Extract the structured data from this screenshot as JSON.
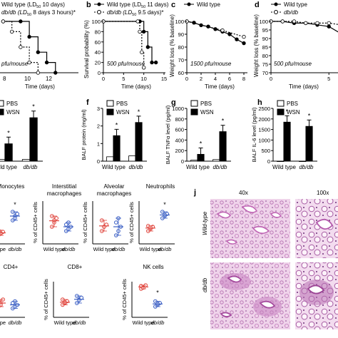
{
  "panels": {
    "a": {
      "letter": "",
      "legend": [
        "Wild type (LD",
        "50",
        " 10 days)",
        "db/db (LD",
        "50",
        " 8 days 3 hours)*"
      ],
      "note": "pfu/mouse",
      "xlabel": "Time (days)",
      "xticks": [
        "8",
        "10",
        "12"
      ]
    },
    "b": {
      "letter": "b",
      "legend": [
        "Wild type (LD",
        "50",
        " 11 days)",
        "db/db (LD",
        "50",
        " 9.5 days)*"
      ],
      "note": "500 pfu/mouse",
      "xlabel": "Time (days)",
      "ylabel": "Survival probability (%)",
      "xticks": [
        "0",
        "5",
        "10",
        "15"
      ],
      "yticks": [
        "100",
        "80",
        "60",
        "40",
        "20",
        "0"
      ]
    },
    "c": {
      "letter": "c",
      "legend": [
        "Wild type"
      ],
      "note": "1500 pfu/mouse",
      "xlabel": "Time (days)",
      "ylabel": "Weight loss (% baseline)",
      "xticks": [
        "0",
        "2",
        "4",
        "6",
        "8"
      ],
      "yticks": [
        "100",
        "90",
        "80",
        "70",
        "60"
      ]
    },
    "d": {
      "letter": "d",
      "legend": [
        "Wild type",
        "db/db"
      ],
      "note": "500 pfu/mouse",
      "xlabel": "Time (days)",
      "ylabel": "Weight loss (% baseline)",
      "xticks": [
        "0",
        "5"
      ],
      "yticks": [
        "100",
        "95",
        "90",
        "85",
        "80",
        "75",
        "70"
      ]
    },
    "e": {
      "letter": "",
      "legend": [
        "PBS",
        "WSN"
      ],
      "xcats": [
        "Wild type",
        "db/db"
      ]
    },
    "f": {
      "letter": "f",
      "legend": [
        "PBS",
        "WSN"
      ],
      "ylabel": "BALF protein (mg/ml)",
      "yticks": [
        "3",
        "2",
        "1",
        "0"
      ],
      "xcats": [
        "Wild type",
        "db/db"
      ]
    },
    "g": {
      "letter": "g",
      "legend": [
        "PBS",
        "WSN"
      ],
      "ylabel": "BALF TNFα level (pg/ml)",
      "yticks": [
        "1000",
        "800",
        "600",
        "400",
        "200",
        "0"
      ],
      "xcats": [
        "Wild type",
        "db/db"
      ]
    },
    "h": {
      "letter": "h",
      "legend": [
        "PBS",
        "WSN"
      ],
      "ylabel": "BALF IL-6 level (pg/ml)",
      "yticks": [
        "2500",
        "2000",
        "1500",
        "1000",
        "500",
        "0"
      ],
      "xcats": [
        "Wild type",
        "db/db"
      ]
    },
    "j": {
      "letter": "j",
      "mag": [
        "40x",
        "100x"
      ],
      "rows": [
        "Wild-type",
        "db/db"
      ]
    }
  },
  "flow": {
    "ylabel": "% of CD45+ cells",
    "titles": [
      "Monocytes",
      "Interstitial macrophages",
      "Alveolar macrophages",
      "Neutrophils",
      "CD4+",
      "CD8+",
      "NK cells"
    ],
    "xcats": [
      "Wild type",
      "db/db"
    ],
    "xcat_partial": "type",
    "sig": "*"
  },
  "chart_data": [
    {
      "type": "line",
      "panel": "a",
      "note": "pfu/mouse",
      "xlabel": "Time (days)",
      "series": [
        {
          "name": "Wild type (LD50 10 days)",
          "x": [
            6,
            8,
            9,
            10,
            11,
            12
          ],
          "y": [
            100,
            100,
            70,
            40,
            20,
            0
          ]
        },
        {
          "name": "db/db (LD50 8 days 3 hours)*",
          "x": [
            6,
            7,
            8,
            9,
            10
          ],
          "y": [
            100,
            80,
            50,
            20,
            0
          ]
        }
      ]
    },
    {
      "type": "line",
      "panel": "b",
      "note": "500 pfu/mouse",
      "xlabel": "Time (days)",
      "ylabel": "Survival probability (%)",
      "xlim": [
        0,
        15
      ],
      "ylim": [
        0,
        100
      ],
      "series": [
        {
          "name": "Wild type (LD50 11 days)",
          "x": [
            0,
            9,
            10,
            11,
            12,
            13
          ],
          "y": [
            100,
            100,
            80,
            50,
            20,
            20
          ]
        },
        {
          "name": "db/db (LD50 9.5 days)*",
          "x": [
            0,
            8.5,
            9,
            9.5,
            10
          ],
          "y": [
            100,
            100,
            80,
            40,
            10
          ]
        }
      ]
    },
    {
      "type": "line",
      "panel": "c",
      "note": "1500 pfu/mouse",
      "xlabel": "Time (days)",
      "ylabel": "Weight loss (% baseline)",
      "xlim": [
        0,
        8
      ],
      "ylim": [
        60,
        100
      ],
      "series": [
        {
          "name": "Wild type",
          "x": [
            0,
            1,
            2,
            3,
            4,
            5,
            6,
            7,
            8
          ],
          "y": [
            100,
            99,
            97,
            96,
            94,
            92,
            90,
            86,
            83
          ]
        },
        {
          "name": "db/db",
          "x": [
            0,
            5,
            8
          ],
          "y": [
            100,
            93,
            88
          ]
        }
      ]
    },
    {
      "type": "line",
      "panel": "d",
      "note": "500 pfu/mouse",
      "xlabel": "Time (days)",
      "ylabel": "Weight loss (% baseline)",
      "xlim": [
        0,
        8
      ],
      "ylim": [
        70,
        100
      ],
      "series": [
        {
          "name": "Wild type",
          "x": [
            0,
            1,
            2,
            3,
            4,
            5,
            6,
            7,
            8
          ],
          "y": [
            100,
            100,
            99,
            99,
            98,
            97,
            93,
            89,
            86
          ]
        },
        {
          "name": "db/db",
          "x": [
            0,
            1,
            2,
            3,
            4,
            5,
            6,
            7
          ],
          "y": [
            100,
            100,
            100,
            99,
            99,
            99,
            98,
            97
          ]
        }
      ]
    },
    {
      "type": "bar",
      "panel": "e",
      "categories": [
        "Wild type",
        "db/db"
      ],
      "series": [
        {
          "name": "PBS",
          "values": [
            0.1,
            0.1
          ]
        },
        {
          "name": "WSN",
          "values": [
            1.0,
            2.5
          ]
        }
      ]
    },
    {
      "type": "bar",
      "panel": "f",
      "ylabel": "BALF protein (mg/ml)",
      "ylim": [
        0,
        3
      ],
      "categories": [
        "Wild type",
        "db/db"
      ],
      "series": [
        {
          "name": "PBS",
          "values": [
            0.25,
            0.3
          ]
        },
        {
          "name": "WSN",
          "values": [
            1.45,
            2.2
          ]
        }
      ]
    },
    {
      "type": "bar",
      "panel": "g",
      "ylabel": "BALF TNFα level (pg/ml)",
      "ylim": [
        0,
        1000
      ],
      "categories": [
        "Wild type",
        "db/db"
      ],
      "series": [
        {
          "name": "PBS",
          "values": [
            20,
            30
          ]
        },
        {
          "name": "WSN",
          "values": [
            130,
            560
          ]
        }
      ]
    },
    {
      "type": "bar",
      "panel": "h",
      "ylabel": "BALF IL-6 level (pg/ml)",
      "ylim": [
        0,
        2500
      ],
      "categories": [
        "Wild type",
        "db/db"
      ],
      "series": [
        {
          "name": "PBS",
          "values": [
            0,
            0
          ]
        },
        {
          "name": "WSN",
          "values": [
            1850,
            1650
          ]
        }
      ]
    },
    {
      "type": "scatter",
      "panel": "i-monocytes",
      "title": "Monocytes",
      "categories": [
        "Wild type",
        "db/db"
      ],
      "ylim": [
        0,
        10
      ],
      "series": [
        {
          "name": "Wild type",
          "values": [
            2,
            2.4,
            2.8,
            3.2,
            2.5
          ]
        },
        {
          "name": "db/db",
          "values": [
            5.5,
            6.5,
            7,
            7.5,
            6
          ]
        }
      ]
    },
    {
      "type": "scatter",
      "panel": "i-interstitial",
      "title": "Interstitial macrophages",
      "categories": [
        "Wild type",
        "db/db"
      ],
      "ylim": [
        0,
        10
      ],
      "series": [
        {
          "name": "Wild type",
          "values": [
            4,
            5,
            6,
            6.5,
            5.5
          ]
        },
        {
          "name": "db/db",
          "values": [
            3,
            3.5,
            4,
            4.5,
            5
          ]
        }
      ]
    },
    {
      "type": "scatter",
      "panel": "i-alveolar",
      "title": "Alveolar macrophages",
      "categories": [
        "Wild type",
        "db/db"
      ],
      "ylim": [
        0,
        10
      ],
      "series": [
        {
          "name": "Wild type",
          "values": [
            3,
            4,
            4.5,
            5.5,
            4
          ]
        },
        {
          "name": "db/db",
          "values": [
            2,
            3,
            4,
            5,
            6
          ]
        }
      ]
    },
    {
      "type": "scatter",
      "panel": "i-neutrophils",
      "title": "Neutrophils",
      "categories": [
        "Wild type",
        "db/db"
      ],
      "ylim": [
        0,
        10
      ],
      "series": [
        {
          "name": "Wild type",
          "values": [
            3,
            3.5,
            4,
            4.2,
            3.8
          ]
        },
        {
          "name": "db/db",
          "values": [
            6,
            6.5,
            7,
            7.5,
            6.8
          ]
        }
      ]
    },
    {
      "type": "scatter",
      "panel": "i-cd4",
      "title": "CD4+",
      "categories": [
        "Wild type",
        "db/db"
      ],
      "ylim": [
        0,
        10
      ],
      "series": [
        {
          "name": "Wild type",
          "values": [
            3,
            4,
            5,
            4.5,
            3.5
          ]
        },
        {
          "name": "db/db",
          "values": [
            2.5,
            3,
            3.5,
            4,
            4.5
          ]
        }
      ]
    },
    {
      "type": "scatter",
      "panel": "i-cd8",
      "title": "CD8+",
      "categories": [
        "Wild type",
        "db/db"
      ],
      "ylim": [
        0,
        10
      ],
      "series": [
        {
          "name": "Wild type",
          "values": [
            3.5,
            4,
            4.5,
            5,
            4.2
          ]
        },
        {
          "name": "db/db",
          "values": [
            4,
            5,
            5.5,
            6,
            4.8
          ]
        }
      ]
    },
    {
      "type": "scatter",
      "panel": "i-nk",
      "title": "NK cells",
      "categories": [
        "Wild type",
        "db/db"
      ],
      "ylim": [
        0,
        10
      ],
      "series": [
        {
          "name": "Wild type",
          "values": [
            8,
            8.5,
            9,
            8.8,
            8.3
          ]
        },
        {
          "name": "db/db",
          "values": [
            3,
            3.5,
            4,
            4.5,
            3.8
          ]
        }
      ]
    }
  ]
}
